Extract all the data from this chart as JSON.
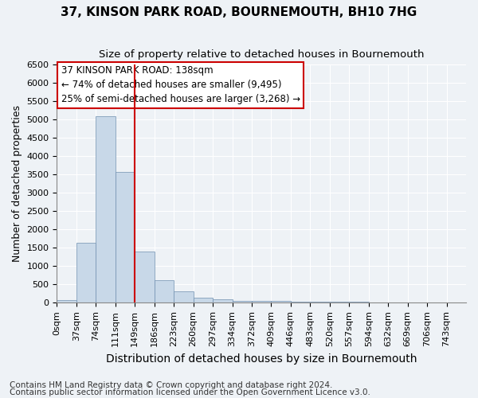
{
  "title": "37, KINSON PARK ROAD, BOURNEMOUTH, BH10 7HG",
  "subtitle": "Size of property relative to detached houses in Bournemouth",
  "xlabel": "Distribution of detached houses by size in Bournemouth",
  "ylabel": "Number of detached properties",
  "footnote1": "Contains HM Land Registry data © Crown copyright and database right 2024.",
  "footnote2": "Contains public sector information licensed under the Open Government Licence v3.0.",
  "bar_values": [
    75,
    1625,
    5075,
    3575,
    1400,
    625,
    300,
    140,
    90,
    55,
    45,
    40,
    35,
    30,
    25,
    20,
    15,
    10,
    8,
    5
  ],
  "bar_color": "#c8d8e8",
  "bar_edge_color": "#7090b0",
  "categories": [
    "0sqm",
    "37sqm",
    "74sqm",
    "111sqm",
    "149sqm",
    "186sqm",
    "223sqm",
    "260sqm",
    "297sqm",
    "334sqm",
    "372sqm",
    "409sqm",
    "446sqm",
    "483sqm",
    "520sqm",
    "557sqm",
    "594sqm",
    "632sqm",
    "669sqm",
    "706sqm",
    "743sqm"
  ],
  "ylim": [
    0,
    6500
  ],
  "yticks": [
    0,
    500,
    1000,
    1500,
    2000,
    2500,
    3000,
    3500,
    4000,
    4500,
    5000,
    5500,
    6000,
    6500
  ],
  "vline_color": "#cc0000",
  "annotation_title": "37 KINSON PARK ROAD: 138sqm",
  "annotation_line1": "← 74% of detached houses are smaller (9,495)",
  "annotation_line2": "25% of semi-detached houses are larger (3,268) →",
  "bg_color": "#eef2f6",
  "grid_color": "#ffffff",
  "title_fontsize": 11,
  "subtitle_fontsize": 9.5,
  "ylabel_fontsize": 9,
  "xlabel_fontsize": 10,
  "tick_fontsize": 8,
  "annotation_fontsize": 8.5,
  "footnote_fontsize": 7.5
}
